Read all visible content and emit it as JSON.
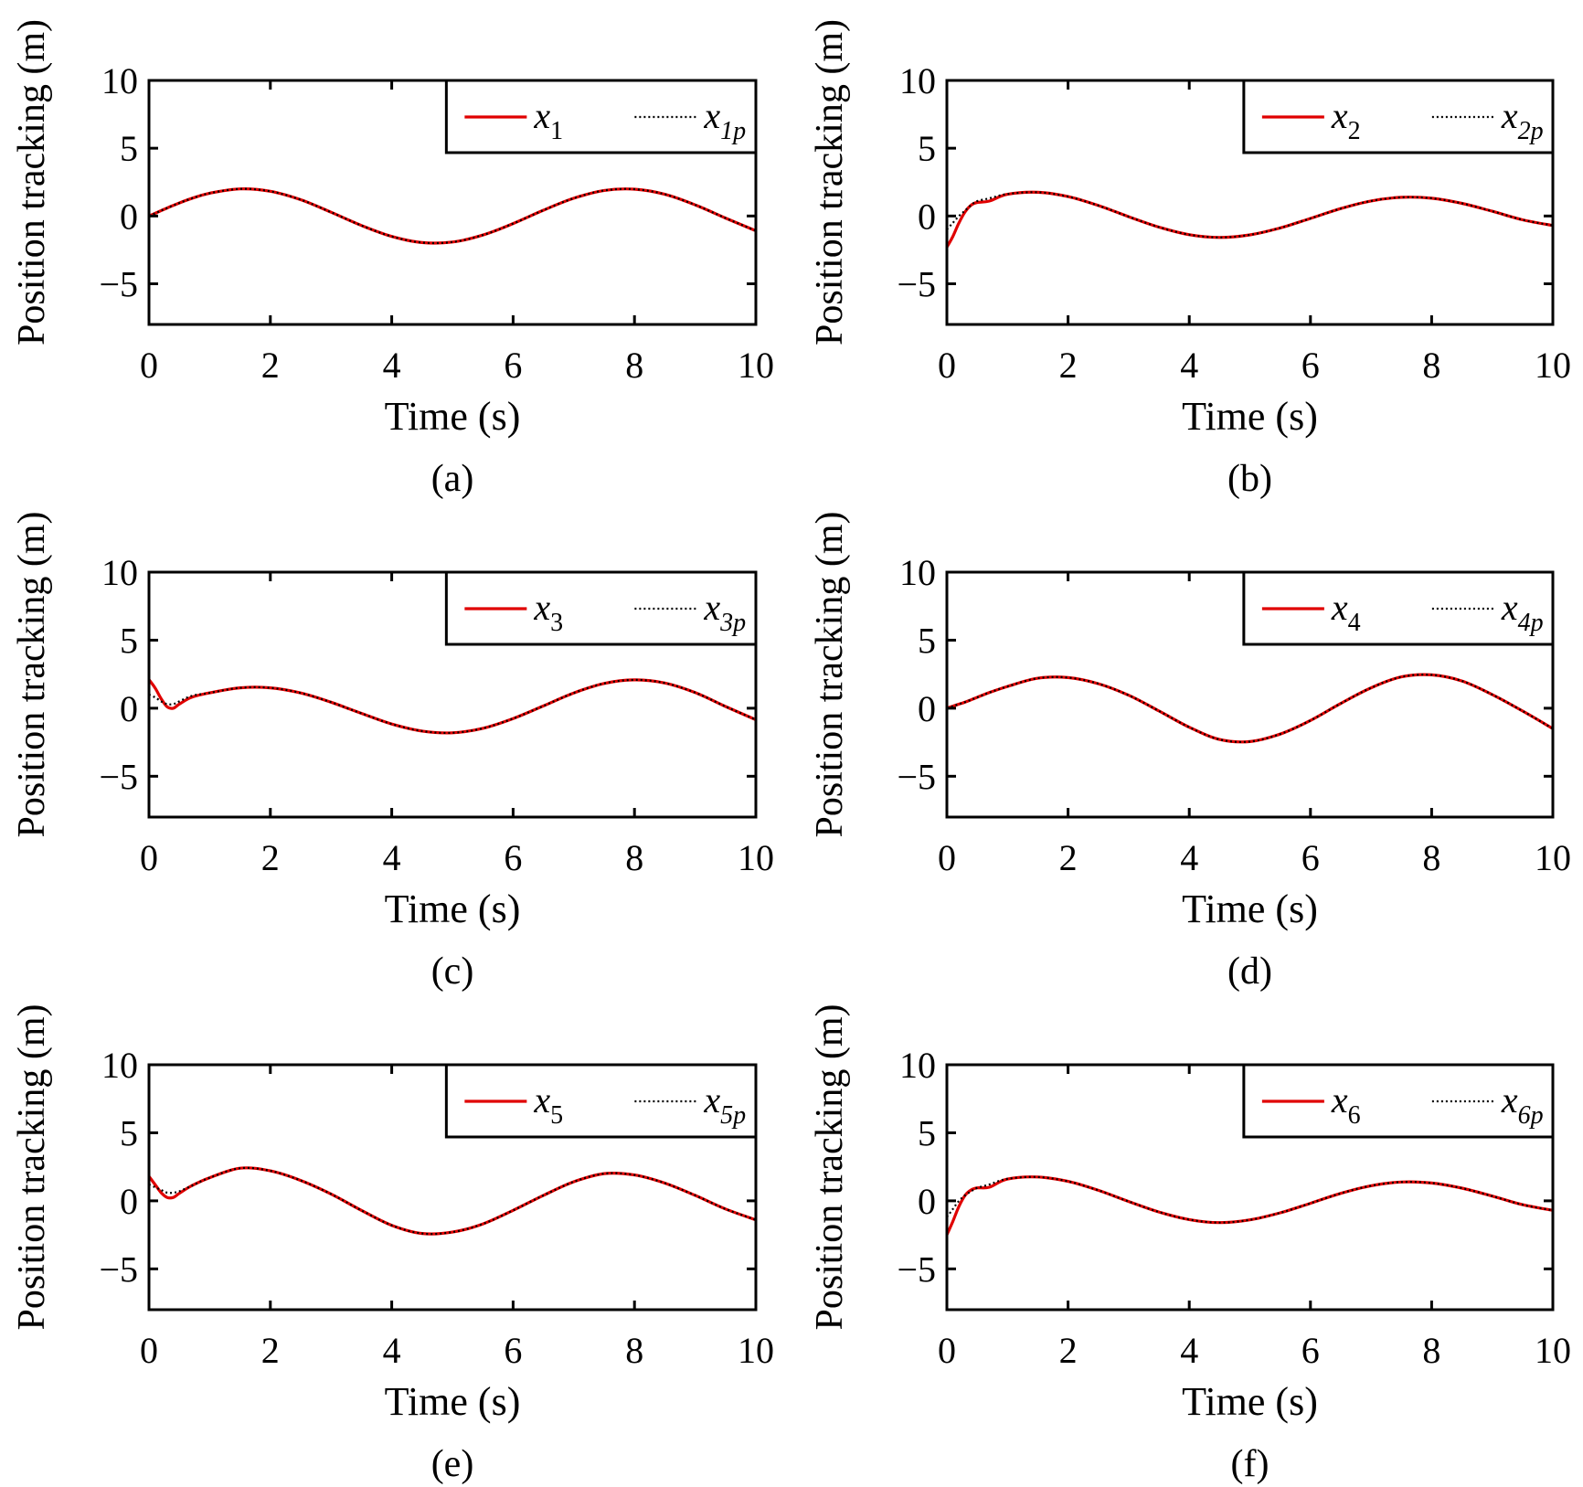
{
  "chart_data": [
    {
      "type": "line",
      "caption": "(a)",
      "xlabel": "Time (s)",
      "ylabel": "Position tracking (m)",
      "xlim": [
        0,
        10
      ],
      "ylim": [
        -8,
        10
      ],
      "xticks": [
        "0",
        "2",
        "4",
        "6",
        "8",
        "10"
      ],
      "yticks": [
        "−5",
        "0",
        "5",
        "10"
      ],
      "legend_position": "top-right",
      "grid": false,
      "x": [
        0,
        0.1,
        0.2,
        0.3,
        0.4,
        0.5,
        0.7,
        1,
        1.5,
        2,
        2.5,
        3,
        3.5,
        4,
        4.5,
        5,
        5.5,
        6,
        6.5,
        7,
        7.5,
        8,
        8.5,
        9,
        9.5,
        10
      ],
      "series": [
        {
          "name": "x1",
          "legend_var": "x",
          "legend_sub": "1",
          "color": "#e00000",
          "style": "solid",
          "values": [
            0,
            0.2,
            0.4,
            0.59,
            0.78,
            0.96,
            1.29,
            1.68,
            2.0,
            1.82,
            1.2,
            0.28,
            -0.7,
            -1.51,
            -1.96,
            -1.92,
            -1.41,
            -0.56,
            0.43,
            1.31,
            1.88,
            1.98,
            1.6,
            0.82,
            -0.15,
            -1.09
          ]
        },
        {
          "name": "x1p",
          "legend_var": "x",
          "legend_sub": "1p",
          "color": "#000000",
          "style": "dotted",
          "values": [
            0,
            0.2,
            0.4,
            0.59,
            0.78,
            0.96,
            1.29,
            1.68,
            2.0,
            1.82,
            1.2,
            0.28,
            -0.7,
            -1.51,
            -1.96,
            -1.92,
            -1.41,
            -0.56,
            0.43,
            1.31,
            1.88,
            1.98,
            1.6,
            0.82,
            -0.15,
            -1.09
          ]
        }
      ]
    },
    {
      "type": "line",
      "caption": "(b)",
      "xlabel": "Time (s)",
      "ylabel": "Position tracking (m)",
      "xlim": [
        0,
        10
      ],
      "ylim": [
        -8,
        10
      ],
      "xticks": [
        "0",
        "2",
        "4",
        "6",
        "8",
        "10"
      ],
      "yticks": [
        "−5",
        "0",
        "5",
        "10"
      ],
      "legend_position": "top-right",
      "grid": false,
      "x": [
        0,
        0.1,
        0.2,
        0.3,
        0.4,
        0.5,
        0.7,
        1,
        1.5,
        2,
        2.5,
        3,
        3.5,
        4,
        4.5,
        5,
        5.5,
        6,
        6.5,
        7,
        7.5,
        8,
        8.5,
        9,
        9.5,
        10
      ],
      "series": [
        {
          "name": "x2",
          "legend_var": "x",
          "legend_sub": "2",
          "color": "#e00000",
          "style": "solid",
          "values": [
            -2.3,
            -1.5,
            -0.5,
            0.3,
            0.8,
            1.0,
            1.1,
            1.6,
            1.75,
            1.43,
            0.77,
            -0.05,
            -0.82,
            -1.38,
            -1.58,
            -1.39,
            -0.88,
            -0.18,
            0.55,
            1.11,
            1.38,
            1.31,
            0.93,
            0.35,
            -0.28,
            -0.7
          ]
        },
        {
          "name": "x2p",
          "legend_var": "x",
          "legend_sub": "2p",
          "color": "#000000",
          "style": "dotted",
          "values": [
            -1.0,
            -0.5,
            0,
            0.4,
            0.8,
            1.1,
            1.3,
            1.62,
            1.75,
            1.43,
            0.77,
            -0.05,
            -0.82,
            -1.38,
            -1.58,
            -1.39,
            -0.88,
            -0.18,
            0.55,
            1.11,
            1.38,
            1.31,
            0.93,
            0.35,
            -0.28,
            -0.7
          ]
        }
      ]
    },
    {
      "type": "line",
      "caption": "(c)",
      "xlabel": "Time (s)",
      "ylabel": "Position tracking (m)",
      "xlim": [
        0,
        10
      ],
      "ylim": [
        -8,
        10
      ],
      "xticks": [
        "0",
        "2",
        "4",
        "6",
        "8",
        "10"
      ],
      "yticks": [
        "−5",
        "0",
        "5",
        "10"
      ],
      "legend_position": "top-right",
      "grid": false,
      "x": [
        0,
        0.1,
        0.2,
        0.3,
        0.4,
        0.5,
        0.7,
        1,
        1.5,
        2,
        2.5,
        3,
        3.5,
        4,
        4.5,
        5,
        5.5,
        6,
        6.5,
        7,
        7.5,
        8,
        8.5,
        9,
        9.5,
        10
      ],
      "series": [
        {
          "name": "x3",
          "legend_var": "x",
          "legend_sub": "3",
          "color": "#e00000",
          "style": "solid",
          "values": [
            2.1,
            1.5,
            0.7,
            0.1,
            0.0,
            0.3,
            0.8,
            1.13,
            1.5,
            1.5,
            1.12,
            0.44,
            -0.38,
            -1.16,
            -1.68,
            -1.81,
            -1.48,
            -0.76,
            0.17,
            1.12,
            1.82,
            2.08,
            1.85,
            1.15,
            0.13,
            -0.85
          ]
        },
        {
          "name": "x3p",
          "legend_var": "x",
          "legend_sub": "3p",
          "color": "#000000",
          "style": "dotted",
          "values": [
            1.0,
            0.8,
            0.5,
            0.3,
            0.3,
            0.5,
            0.9,
            1.13,
            1.5,
            1.5,
            1.12,
            0.44,
            -0.38,
            -1.16,
            -1.68,
            -1.81,
            -1.48,
            -0.76,
            0.17,
            1.12,
            1.82,
            2.08,
            1.85,
            1.15,
            0.13,
            -0.85
          ]
        }
      ]
    },
    {
      "type": "line",
      "caption": "(d)",
      "xlabel": "Time (s)",
      "ylabel": "Position tracking (m)",
      "xlim": [
        0,
        10
      ],
      "ylim": [
        -8,
        10
      ],
      "xticks": [
        "0",
        "2",
        "4",
        "6",
        "8",
        "10"
      ],
      "yticks": [
        "−5",
        "0",
        "5",
        "10"
      ],
      "legend_position": "top-right",
      "grid": false,
      "x": [
        0,
        0.1,
        0.2,
        0.3,
        0.4,
        0.5,
        0.7,
        1,
        1.5,
        2,
        2.5,
        3,
        3.5,
        4,
        4.5,
        5,
        5.5,
        6,
        6.5,
        7,
        7.5,
        8,
        8.5,
        9,
        9.5,
        10
      ],
      "series": [
        {
          "name": "x4",
          "legend_var": "x",
          "legend_sub": "4",
          "color": "#e00000",
          "style": "solid",
          "values": [
            0,
            0.15,
            0.3,
            0.45,
            0.62,
            0.8,
            1.15,
            1.6,
            2.2,
            2.25,
            1.8,
            0.95,
            -0.2,
            -1.4,
            -2.3,
            -2.45,
            -1.9,
            -0.9,
            0.35,
            1.5,
            2.3,
            2.45,
            2.0,
            1.0,
            -0.2,
            -1.5
          ]
        },
        {
          "name": "x4p",
          "legend_var": "x",
          "legend_sub": "4p",
          "color": "#000000",
          "style": "dotted",
          "values": [
            0,
            0.15,
            0.3,
            0.45,
            0.62,
            0.8,
            1.15,
            1.6,
            2.2,
            2.25,
            1.8,
            0.95,
            -0.2,
            -1.4,
            -2.3,
            -2.45,
            -1.9,
            -0.9,
            0.35,
            1.5,
            2.3,
            2.45,
            2.0,
            1.0,
            -0.2,
            -1.5
          ]
        }
      ]
    },
    {
      "type": "line",
      "caption": "(e)",
      "xlabel": "Time (s)",
      "ylabel": "Position tracking (m)",
      "xlim": [
        0,
        10
      ],
      "ylim": [
        -8,
        10
      ],
      "xticks": [
        "0",
        "2",
        "4",
        "6",
        "8",
        "10"
      ],
      "yticks": [
        "−5",
        "0",
        "5",
        "10"
      ],
      "legend_position": "top-right",
      "grid": false,
      "x": [
        0,
        0.1,
        0.2,
        0.3,
        0.4,
        0.5,
        0.7,
        1,
        1.5,
        2,
        2.5,
        3,
        3.5,
        4,
        4.5,
        5,
        5.5,
        6,
        6.5,
        7,
        7.5,
        8,
        8.5,
        9,
        9.5,
        10
      ],
      "series": [
        {
          "name": "x5",
          "legend_var": "x",
          "legend_sub": "5",
          "color": "#e00000",
          "style": "solid",
          "values": [
            1.8,
            1.2,
            0.6,
            0.25,
            0.25,
            0.55,
            1.1,
            1.7,
            2.4,
            2.2,
            1.5,
            0.5,
            -0.7,
            -1.8,
            -2.4,
            -2.3,
            -1.7,
            -0.7,
            0.4,
            1.4,
            2.0,
            1.9,
            1.3,
            0.4,
            -0.6,
            -1.4
          ]
        },
        {
          "name": "x5p",
          "legend_var": "x",
          "legend_sub": "5p",
          "color": "#000000",
          "style": "dotted",
          "values": [
            1.2,
            1.0,
            0.8,
            0.6,
            0.6,
            0.7,
            1.1,
            1.7,
            2.4,
            2.2,
            1.5,
            0.5,
            -0.7,
            -1.8,
            -2.4,
            -2.3,
            -1.7,
            -0.7,
            0.4,
            1.4,
            2.0,
            1.9,
            1.3,
            0.4,
            -0.6,
            -1.4
          ]
        }
      ]
    },
    {
      "type": "line",
      "caption": "(f)",
      "xlabel": "Time (s)",
      "ylabel": "Position tracking (m)",
      "xlim": [
        0,
        10
      ],
      "ylim": [
        -8,
        10
      ],
      "xticks": [
        "0",
        "2",
        "4",
        "6",
        "8",
        "10"
      ],
      "yticks": [
        "−5",
        "0",
        "5",
        "10"
      ],
      "legend_position": "top-right",
      "grid": false,
      "x": [
        0,
        0.1,
        0.2,
        0.3,
        0.4,
        0.5,
        0.7,
        1,
        1.5,
        2,
        2.5,
        3,
        3.5,
        4,
        4.5,
        5,
        5.5,
        6,
        6.5,
        7,
        7.5,
        8,
        8.5,
        9,
        9.5,
        10
      ],
      "series": [
        {
          "name": "x6",
          "legend_var": "x",
          "legend_sub": "6",
          "color": "#e00000",
          "style": "solid",
          "values": [
            -2.5,
            -1.5,
            -0.4,
            0.4,
            0.8,
            0.95,
            1.0,
            1.6,
            1.75,
            1.43,
            0.77,
            -0.05,
            -0.82,
            -1.38,
            -1.6,
            -1.4,
            -0.88,
            -0.18,
            0.55,
            1.11,
            1.38,
            1.31,
            0.93,
            0.35,
            -0.28,
            -0.7
          ]
        },
        {
          "name": "x6p",
          "legend_var": "x",
          "legend_sub": "6p",
          "color": "#000000",
          "style": "dotted",
          "values": [
            -1.2,
            -0.6,
            0,
            0.4,
            0.7,
            0.95,
            1.2,
            1.62,
            1.75,
            1.43,
            0.77,
            -0.05,
            -0.82,
            -1.38,
            -1.6,
            -1.4,
            -0.88,
            -0.18,
            0.55,
            1.11,
            1.38,
            1.31,
            0.93,
            0.35,
            -0.28,
            -0.7
          ]
        }
      ]
    }
  ]
}
